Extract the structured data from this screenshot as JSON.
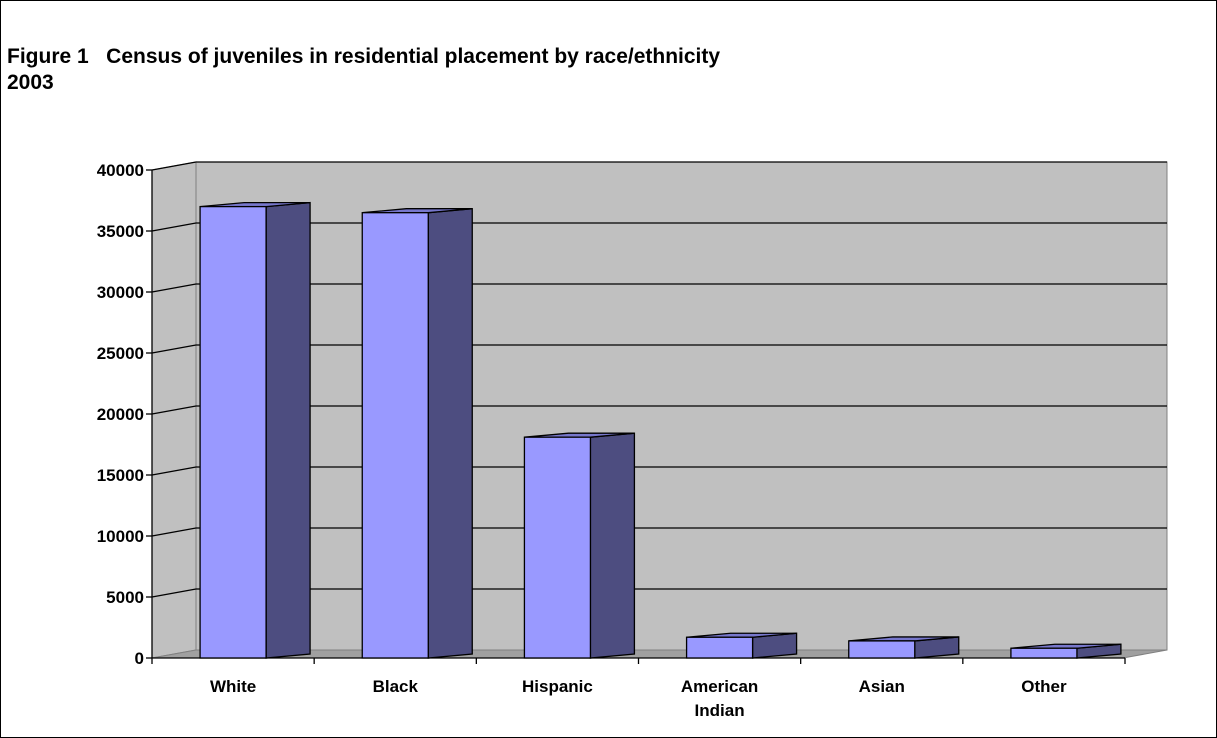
{
  "chart_data": {
    "type": "bar",
    "title_line1": "Figure 1   Census of juveniles in residential placement by race/ethnicity",
    "title_line2": "2003",
    "categories": [
      "White",
      "Black",
      "Hispanic",
      "American Indian",
      "Asian",
      "Other"
    ],
    "category_lines": [
      [
        "White"
      ],
      [
        "Black"
      ],
      [
        "Hispanic"
      ],
      [
        "American",
        "Indian"
      ],
      [
        "Asian"
      ],
      [
        "Other"
      ]
    ],
    "values": [
      37000,
      36500,
      18100,
      1700,
      1400,
      800
    ],
    "ylim": [
      0,
      40000
    ],
    "yticks": [
      0,
      5000,
      10000,
      15000,
      20000,
      25000,
      30000,
      35000,
      40000
    ],
    "ytick_labels": [
      "0",
      "5000",
      "10000",
      "15000",
      "20000",
      "25000",
      "30000",
      "35000",
      "40000"
    ],
    "xlabel": "",
    "ylabel": "",
    "grid": true,
    "legend": "none",
    "colors": {
      "bar_front": "#9999ff",
      "bar_side": "#4d4d80",
      "bar_top": "#7777cc",
      "wall": "#c0c0c0",
      "gridline": "#000000"
    }
  }
}
